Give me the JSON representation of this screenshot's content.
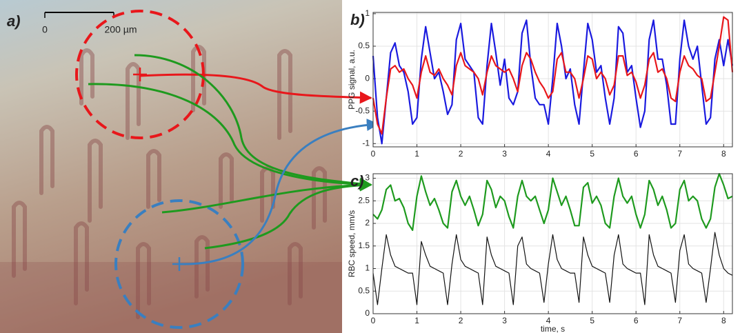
{
  "panel_a": {
    "label": "a)",
    "scale_bar": {
      "start": "0",
      "end": "200 µm"
    }
  },
  "chart_data": [
    {
      "type": "line",
      "panel_label": "b)",
      "y_label": "PPG signal, a.u.",
      "x": [
        0,
        0.1,
        0.2,
        0.3,
        0.4,
        0.5,
        0.6,
        0.7,
        0.8,
        0.9,
        1,
        1.1,
        1.2,
        1.3,
        1.4,
        1.5,
        1.6,
        1.7,
        1.8,
        1.9,
        2,
        2.1,
        2.2,
        2.3,
        2.4,
        2.5,
        2.6,
        2.7,
        2.8,
        2.9,
        3,
        3.1,
        3.2,
        3.3,
        3.4,
        3.5,
        3.6,
        3.7,
        3.8,
        3.9,
        4,
        4.1,
        4.2,
        4.3,
        4.4,
        4.5,
        4.6,
        4.7,
        4.8,
        4.9,
        5,
        5.1,
        5.2,
        5.3,
        5.4,
        5.5,
        5.6,
        5.7,
        5.8,
        5.9,
        6,
        6.1,
        6.2,
        6.3,
        6.4,
        6.5,
        6.6,
        6.7,
        6.8,
        6.9,
        7,
        7.1,
        7.2,
        7.3,
        7.4,
        7.5,
        7.6,
        7.7,
        7.8,
        7.9,
        8,
        8.1,
        8.2
      ],
      "series": [
        {
          "color": "#1a1adf",
          "values": [
            0.35,
            -0.6,
            -1.0,
            -0.3,
            0.4,
            0.55,
            0.2,
            0.1,
            -0.2,
            -0.7,
            -0.6,
            0.3,
            0.8,
            0.4,
            0.0,
            0.1,
            -0.2,
            -0.55,
            -0.4,
            0.6,
            0.85,
            0.3,
            0.2,
            0.1,
            -0.6,
            -0.7,
            0.2,
            0.85,
            0.4,
            -0.1,
            0.3,
            -0.3,
            -0.4,
            -0.2,
            0.7,
            0.9,
            0.2,
            -0.3,
            -0.4,
            -0.4,
            -0.7,
            0.0,
            0.85,
            0.5,
            0.0,
            0.15,
            -0.4,
            -0.7,
            0.1,
            0.85,
            0.6,
            0.1,
            0.2,
            -0.3,
            -0.7,
            -0.3,
            0.8,
            0.7,
            0.1,
            0.2,
            -0.3,
            -0.75,
            -0.5,
            0.6,
            0.9,
            0.3,
            0.3,
            -0.1,
            -0.7,
            -0.7,
            0.3,
            0.9,
            0.5,
            0.3,
            0.5,
            -0.1,
            -0.7,
            -0.6,
            0.3,
            0.6,
            0.2,
            0.6,
            0.2
          ]
        },
        {
          "color": "#e8171b",
          "values": [
            -0.3,
            -0.7,
            -0.85,
            -0.3,
            0.15,
            0.2,
            0.1,
            0.15,
            0.0,
            -0.1,
            -0.3,
            0.1,
            0.35,
            0.1,
            0.05,
            0.15,
            0.0,
            -0.1,
            -0.25,
            0.2,
            0.4,
            0.2,
            0.15,
            0.1,
            0.0,
            -0.25,
            0.1,
            0.35,
            0.2,
            0.15,
            0.1,
            0.15,
            0.0,
            -0.2,
            0.2,
            0.4,
            0.3,
            0.1,
            -0.05,
            -0.15,
            -0.3,
            -0.2,
            0.3,
            0.4,
            0.1,
            0.1,
            0.0,
            -0.3,
            0.0,
            0.35,
            0.3,
            0.0,
            0.1,
            0.0,
            -0.25,
            -0.1,
            0.35,
            0.35,
            0.05,
            0.1,
            -0.05,
            -0.3,
            -0.1,
            0.3,
            0.4,
            0.1,
            0.15,
            0.0,
            -0.3,
            -0.35,
            0.1,
            0.35,
            0.2,
            0.15,
            0.05,
            0.0,
            -0.35,
            -0.3,
            0.1,
            0.5,
            0.95,
            0.9,
            0.1
          ]
        }
      ],
      "xlim": [
        0,
        8.2
      ],
      "xticks": [
        0,
        1,
        2,
        3,
        4,
        5,
        6,
        7,
        8
      ],
      "ylim": [
        -1.05,
        1.02
      ],
      "yticks": [
        -1,
        -0.5,
        0,
        0.5,
        1
      ],
      "grid": true
    },
    {
      "type": "line",
      "panel_label": "c)",
      "y_label": "RBC speed, mm/s",
      "x_label": "time, s",
      "x": [
        0,
        0.1,
        0.2,
        0.3,
        0.4,
        0.5,
        0.6,
        0.7,
        0.8,
        0.9,
        1,
        1.1,
        1.2,
        1.3,
        1.4,
        1.5,
        1.6,
        1.7,
        1.8,
        1.9,
        2,
        2.1,
        2.2,
        2.3,
        2.4,
        2.5,
        2.6,
        2.7,
        2.8,
        2.9,
        3,
        3.1,
        3.2,
        3.3,
        3.4,
        3.5,
        3.6,
        3.7,
        3.8,
        3.9,
        4,
        4.1,
        4.2,
        4.3,
        4.4,
        4.5,
        4.6,
        4.7,
        4.8,
        4.9,
        5,
        5.1,
        5.2,
        5.3,
        5.4,
        5.5,
        5.6,
        5.7,
        5.8,
        5.9,
        6,
        6.1,
        6.2,
        6.3,
        6.4,
        6.5,
        6.6,
        6.7,
        6.8,
        6.9,
        7,
        7.1,
        7.2,
        7.3,
        7.4,
        7.5,
        7.6,
        7.7,
        7.8,
        7.9,
        8,
        8.1,
        8.2
      ],
      "series": [
        {
          "color": "#1e9a1e",
          "values": [
            2.2,
            2.1,
            2.3,
            2.75,
            2.85,
            2.5,
            2.55,
            2.35,
            2.0,
            1.85,
            2.6,
            3.05,
            2.7,
            2.4,
            2.55,
            2.3,
            2.0,
            1.9,
            2.7,
            2.95,
            2.6,
            2.4,
            2.6,
            2.3,
            1.95,
            2.2,
            2.95,
            2.75,
            2.35,
            2.6,
            2.5,
            2.15,
            1.9,
            2.6,
            2.95,
            2.6,
            2.5,
            2.6,
            2.3,
            2.0,
            2.3,
            3.0,
            2.7,
            2.4,
            2.6,
            2.3,
            1.95,
            1.95,
            2.8,
            2.9,
            2.45,
            2.6,
            2.4,
            2.0,
            1.9,
            2.6,
            3.0,
            2.6,
            2.45,
            2.6,
            2.2,
            1.9,
            2.2,
            2.95,
            2.75,
            2.4,
            2.6,
            2.3,
            1.9,
            2.0,
            2.75,
            2.95,
            2.5,
            2.6,
            2.5,
            2.1,
            1.9,
            2.1,
            2.8,
            3.1,
            2.85,
            2.55,
            2.6
          ]
        },
        {
          "color": "#111111",
          "values": [
            0.9,
            0.2,
            1.0,
            1.75,
            1.3,
            1.05,
            1.0,
            0.95,
            0.9,
            0.9,
            0.2,
            1.6,
            1.3,
            1.05,
            1.0,
            0.95,
            0.9,
            0.2,
            1.1,
            1.75,
            1.2,
            1.05,
            1.0,
            0.95,
            0.9,
            0.2,
            1.7,
            1.3,
            1.05,
            1.0,
            0.95,
            0.9,
            0.2,
            1.5,
            1.7,
            1.1,
            1.0,
            0.95,
            0.9,
            0.25,
            1.1,
            1.75,
            1.2,
            1.0,
            0.95,
            0.9,
            0.9,
            0.25,
            1.7,
            1.3,
            1.05,
            1.0,
            0.95,
            0.9,
            0.25,
            1.3,
            1.75,
            1.1,
            1.0,
            0.95,
            0.9,
            0.9,
            0.2,
            1.75,
            1.3,
            1.05,
            1.0,
            0.95,
            0.9,
            0.25,
            1.4,
            1.75,
            1.1,
            1.0,
            0.95,
            0.9,
            0.25,
            1.0,
            1.8,
            1.3,
            1.0,
            0.9,
            0.85
          ]
        }
      ],
      "xlim": [
        0,
        8.2
      ],
      "xticks": [
        0,
        1,
        2,
        3,
        4,
        5,
        6,
        7,
        8
      ],
      "ylim": [
        0,
        3.1
      ],
      "yticks": [
        0,
        0.5,
        1,
        1.5,
        2,
        2.5,
        3
      ],
      "grid": true
    }
  ]
}
